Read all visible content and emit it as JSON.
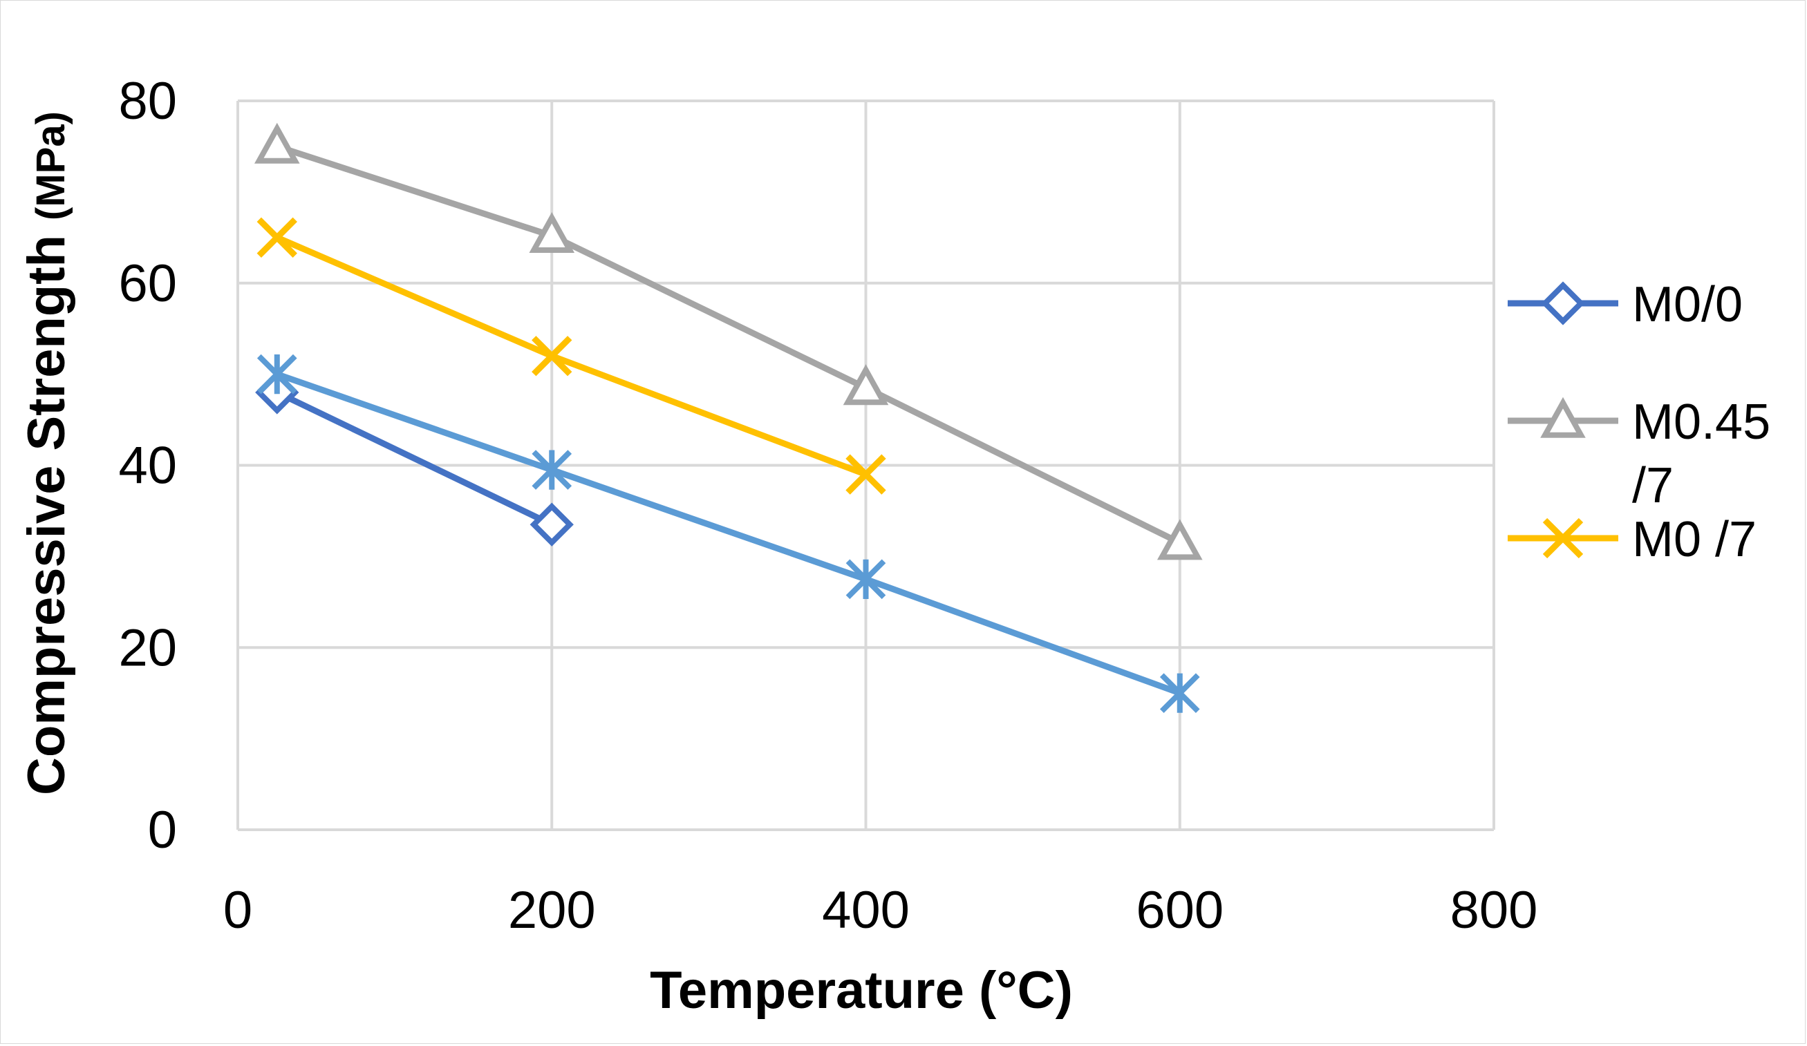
{
  "chart_data": {
    "type": "line",
    "title": "",
    "xlabel": "Temperature (°C)",
    "ylabel_main": "Compressive Strength ",
    "ylabel_unit": "(MPa)",
    "xlim": [
      0,
      800
    ],
    "ylim": [
      0,
      80
    ],
    "xticks": [
      0,
      200,
      400,
      600,
      800
    ],
    "yticks": [
      0,
      20,
      40,
      60,
      80
    ],
    "grid": true,
    "legend_position": "right",
    "series": [
      {
        "name": "M0/0",
        "color": "#4472c4",
        "marker": "diamond",
        "in_legend": true,
        "x": [
          25,
          200
        ],
        "y": [
          48,
          33.5
        ]
      },
      {
        "name": "M0.45 /7",
        "legend_lines": [
          "M0.45",
          "/7"
        ],
        "color": "#a5a5a5",
        "marker": "triangle",
        "in_legend": true,
        "x": [
          25,
          200,
          400,
          600
        ],
        "y": [
          75,
          65.2,
          48.5,
          31.5
        ]
      },
      {
        "name": "M0 /7",
        "color": "#ffc000",
        "marker": "x",
        "in_legend": true,
        "x": [
          25,
          200,
          400
        ],
        "y": [
          65,
          52,
          39
        ]
      },
      {
        "name": "",
        "color": "#5b9bd5",
        "marker": "star",
        "in_legend": false,
        "x": [
          25,
          200,
          400,
          600
        ],
        "y": [
          50,
          39.5,
          27.5,
          15
        ]
      }
    ]
  }
}
